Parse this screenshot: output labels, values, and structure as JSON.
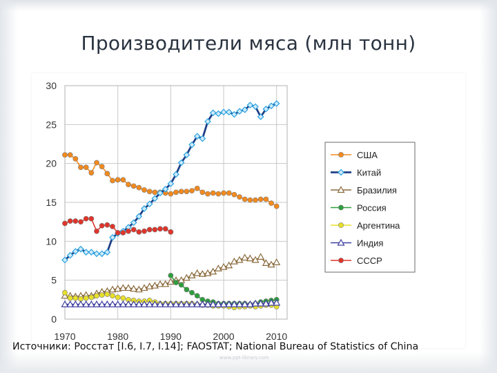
{
  "slide": {
    "title": "Производители мяса (млн тонн)",
    "source": "Источники: Росстат [I.6, I.7, I.14]; FAOSTAT; National Bureau of Statistics of China",
    "watermark": "www.ppt-library.com"
  },
  "chart_data": {
    "type": "line",
    "title": "",
    "xlabel": "",
    "ylabel": "",
    "xlim": [
      1970,
      2012
    ],
    "ylim": [
      0,
      30
    ],
    "xticks": [
      1970,
      1980,
      1990,
      2000,
      2010
    ],
    "yticks": [
      0,
      5,
      10,
      15,
      20,
      25,
      30
    ],
    "grid": true,
    "legend_position": "right",
    "series": [
      {
        "name": "США",
        "color": "#f28a1e",
        "marker": "circle",
        "x": [
          1970,
          1971,
          1972,
          1973,
          1974,
          1975,
          1976,
          1977,
          1978,
          1979,
          1980,
          1981,
          1982,
          1983,
          1984,
          1985,
          1986,
          1987,
          1988,
          1989,
          1990,
          1991,
          1992,
          1993,
          1994,
          1995,
          1996,
          1997,
          1998,
          1999,
          2000,
          2001,
          2002,
          2003,
          2004,
          2005,
          2006,
          2007,
          2008,
          2009,
          2010
        ],
        "y": [
          21.1,
          21.1,
          20.6,
          19.5,
          19.5,
          18.8,
          20.1,
          19.6,
          18.7,
          17.8,
          17.9,
          17.9,
          17.3,
          17.1,
          16.9,
          16.6,
          16.4,
          16.3,
          16.3,
          16.2,
          16.1,
          16.3,
          16.4,
          16.4,
          16.5,
          16.8,
          16.3,
          16.1,
          16.2,
          16.1,
          16.2,
          16.2,
          16.0,
          15.7,
          15.4,
          15.3,
          15.3,
          15.4,
          15.4,
          14.9,
          14.5
        ]
      },
      {
        "name": "Китай",
        "color": "#2aa3e0",
        "marker": "diamond",
        "x": [
          1970,
          1971,
          1972,
          1973,
          1974,
          1975,
          1976,
          1977,
          1978,
          1979,
          1980,
          1981,
          1982,
          1983,
          1984,
          1985,
          1986,
          1987,
          1988,
          1989,
          1990,
          1991,
          1992,
          1993,
          1994,
          1995,
          1996,
          1997,
          1998,
          1999,
          2000,
          2001,
          2002,
          2003,
          2004,
          2005,
          2006,
          2007,
          2008,
          2009,
          2010
        ],
        "y": [
          7.6,
          8.2,
          8.7,
          9.0,
          8.6,
          8.6,
          8.4,
          8.4,
          8.6,
          10.5,
          11.0,
          11.3,
          11.8,
          12.4,
          13.2,
          14.2,
          14.8,
          15.5,
          16.2,
          16.7,
          17.4,
          18.6,
          20.1,
          21.1,
          22.4,
          23.5,
          23.2,
          25.4,
          26.5,
          26.4,
          26.6,
          26.6,
          26.3,
          26.7,
          26.9,
          27.5,
          27.3,
          26.0,
          27.0,
          27.4,
          27.7
        ]
      },
      {
        "name": "Бразилия",
        "color": "#8a6b3d",
        "marker": "triangle",
        "x": [
          1970,
          1971,
          1972,
          1973,
          1974,
          1975,
          1976,
          1977,
          1978,
          1979,
          1980,
          1981,
          1982,
          1983,
          1984,
          1985,
          1986,
          1987,
          1988,
          1989,
          1990,
          1991,
          1992,
          1993,
          1994,
          1995,
          1996,
          1997,
          1998,
          1999,
          2000,
          2001,
          2002,
          2003,
          2004,
          2005,
          2006,
          2007,
          2008,
          2009,
          2010
        ],
        "y": [
          3.0,
          3.0,
          2.9,
          3.0,
          3.1,
          3.0,
          3.3,
          3.5,
          3.6,
          3.8,
          3.9,
          4.0,
          4.0,
          3.9,
          3.8,
          4.0,
          4.2,
          4.3,
          4.5,
          4.5,
          4.8,
          5.0,
          5.0,
          5.3,
          5.6,
          5.9,
          5.8,
          5.9,
          6.1,
          6.5,
          6.7,
          6.9,
          7.4,
          7.6,
          7.9,
          7.8,
          7.6,
          8.0,
          7.2,
          7.0,
          7.3
        ]
      },
      {
        "name": "Россия",
        "color": "#2e9e3e",
        "marker": "circle",
        "x": [
          1990,
          1991,
          1992,
          1993,
          1994,
          1995,
          1996,
          1997,
          1998,
          1999,
          2000,
          2001,
          2002,
          2003,
          2004,
          2005,
          2006,
          2007,
          2008,
          2009,
          2010
        ],
        "y": [
          5.6,
          4.7,
          4.4,
          3.8,
          3.4,
          3.0,
          2.5,
          2.3,
          2.2,
          2.0,
          2.0,
          2.0,
          2.0,
          2.0,
          2.0,
          1.9,
          2.0,
          2.2,
          2.3,
          2.4,
          2.5
        ]
      },
      {
        "name": "Аргентина",
        "color": "#e8e02a",
        "marker": "circle",
        "x": [
          1970,
          1971,
          1972,
          1973,
          1974,
          1975,
          1976,
          1977,
          1978,
          1979,
          1980,
          1981,
          1982,
          1983,
          1984,
          1985,
          1986,
          1987,
          1988,
          1989,
          1990,
          1991,
          1992,
          1993,
          1994,
          1995,
          1996,
          1997,
          1998,
          1999,
          2000,
          2001,
          2002,
          2003,
          2004,
          2005,
          2006,
          2007,
          2008,
          2009,
          2010
        ],
        "y": [
          3.4,
          2.7,
          2.7,
          2.6,
          2.7,
          2.8,
          3.0,
          3.1,
          3.2,
          3.0,
          2.8,
          2.7,
          2.5,
          2.4,
          2.3,
          2.3,
          2.4,
          2.2,
          2.0,
          2.0,
          2.0,
          2.0,
          2.0,
          2.0,
          2.0,
          1.9,
          1.8,
          1.8,
          1.7,
          1.7,
          1.7,
          1.6,
          1.5,
          1.6,
          1.6,
          1.7,
          1.6,
          1.7,
          1.8,
          1.8,
          1.6
        ]
      },
      {
        "name": "Индия",
        "color": "#3f3fa0",
        "marker": "triangle",
        "x": [
          1970,
          1971,
          1972,
          1973,
          1974,
          1975,
          1976,
          1977,
          1978,
          1979,
          1980,
          1981,
          1982,
          1983,
          1984,
          1985,
          1986,
          1987,
          1988,
          1989,
          1990,
          1991,
          1992,
          1993,
          1994,
          1995,
          1996,
          1997,
          1998,
          1999,
          2000,
          2001,
          2002,
          2003,
          2004,
          2005,
          2006,
          2007,
          2008,
          2009,
          2010
        ],
        "y": [
          1.9,
          1.9,
          1.9,
          1.9,
          1.9,
          1.9,
          1.9,
          1.9,
          1.9,
          1.9,
          1.9,
          1.9,
          1.9,
          1.9,
          1.9,
          1.9,
          1.9,
          1.9,
          1.9,
          1.9,
          1.9,
          1.9,
          1.9,
          1.9,
          1.9,
          1.9,
          1.9,
          1.9,
          1.9,
          1.9,
          1.9,
          1.9,
          1.9,
          1.9,
          1.9,
          1.9,
          2.0,
          2.0,
          2.0,
          2.1,
          2.1
        ]
      },
      {
        "name": "СССР",
        "color": "#e0342a",
        "marker": "circle",
        "x": [
          1970,
          1971,
          1972,
          1973,
          1974,
          1975,
          1976,
          1977,
          1978,
          1979,
          1980,
          1981,
          1982,
          1983,
          1984,
          1985,
          1986,
          1987,
          1988,
          1989,
          1990
        ],
        "y": [
          12.3,
          12.6,
          12.6,
          12.5,
          12.9,
          12.9,
          11.3,
          12.0,
          12.1,
          11.9,
          11.1,
          11.1,
          11.3,
          11.5,
          11.2,
          11.3,
          11.5,
          11.5,
          11.6,
          11.6,
          11.2
        ]
      }
    ]
  }
}
